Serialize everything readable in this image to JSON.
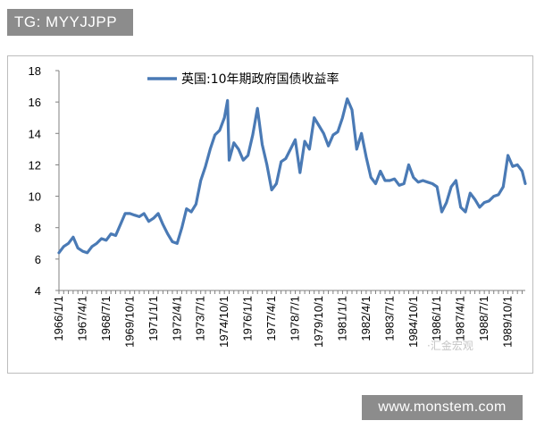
{
  "tag_label": "TG: MYYJJPP",
  "footer_url": "www.monstem.com",
  "watermark": "·汇金宏观",
  "colors": {
    "line": "#4a7ab5",
    "axis": "#808080",
    "tag_bg": "#8c8c8c"
  },
  "chart_data": {
    "type": "line",
    "title": "",
    "xlabel": "",
    "ylabel": "",
    "ylim": [
      4,
      18
    ],
    "yticks": [
      4,
      6,
      8,
      10,
      12,
      14,
      16,
      18
    ],
    "xlim": [
      "1966-01",
      "1990-09"
    ],
    "xtick_labels": [
      "1966/1/1",
      "1967/4/1",
      "1968/7/1",
      "1969/10/1",
      "1971/1/1",
      "1972/4/1",
      "1973/7/1",
      "1974/10/1",
      "1976/1/1",
      "1977/4/1",
      "1978/7/1",
      "1979/10/1",
      "1981/1/1",
      "1982/4/1",
      "1983/7/1",
      "1984/10/1",
      "1986/1/1",
      "1987/4/1",
      "1988/7/1",
      "1989/10/1"
    ],
    "grid": false,
    "legend_position": "top-left",
    "series": [
      {
        "name": "英国:10年期政府国债收益率",
        "x": [
          "1966-01",
          "1966-04",
          "1966-07",
          "1966-10",
          "1967-01",
          "1967-04",
          "1967-07",
          "1967-10",
          "1968-01",
          "1968-04",
          "1968-07",
          "1968-10",
          "1969-01",
          "1969-04",
          "1969-07",
          "1969-10",
          "1970-01",
          "1970-04",
          "1970-07",
          "1970-10",
          "1971-01",
          "1971-04",
          "1971-07",
          "1971-10",
          "1972-01",
          "1972-04",
          "1972-07",
          "1972-10",
          "1973-01",
          "1973-04",
          "1973-07",
          "1973-10",
          "1974-01",
          "1974-04",
          "1974-07",
          "1974-10",
          "1974-12",
          "1975-01",
          "1975-04",
          "1975-07",
          "1975-10",
          "1976-01",
          "1976-04",
          "1976-07",
          "1976-10",
          "1977-01",
          "1977-04",
          "1977-07",
          "1977-10",
          "1978-01",
          "1978-04",
          "1978-07",
          "1978-10",
          "1979-01",
          "1979-04",
          "1979-07",
          "1979-10",
          "1980-01",
          "1980-04",
          "1980-07",
          "1980-10",
          "1981-01",
          "1981-04",
          "1981-07",
          "1981-10",
          "1982-01",
          "1982-04",
          "1982-07",
          "1982-10",
          "1983-01",
          "1983-04",
          "1983-07",
          "1983-10",
          "1984-01",
          "1984-04",
          "1984-07",
          "1984-10",
          "1985-01",
          "1985-04",
          "1985-07",
          "1985-10",
          "1986-01",
          "1986-04",
          "1986-07",
          "1986-10",
          "1987-01",
          "1987-04",
          "1987-07",
          "1987-10",
          "1988-01",
          "1988-04",
          "1988-07",
          "1988-10",
          "1989-01",
          "1989-04",
          "1989-07",
          "1989-10",
          "1990-01",
          "1990-04",
          "1990-07",
          "1990-09"
        ],
        "y": [
          6.4,
          6.8,
          7.0,
          7.4,
          6.7,
          6.5,
          6.4,
          6.8,
          7.0,
          7.3,
          7.2,
          7.6,
          7.5,
          8.2,
          8.9,
          8.9,
          8.8,
          8.7,
          8.9,
          8.4,
          8.6,
          8.9,
          8.2,
          7.6,
          7.1,
          7.0,
          8.0,
          9.2,
          9.0,
          9.5,
          11.0,
          11.9,
          13.0,
          13.9,
          14.2,
          15.0,
          16.1,
          12.3,
          13.4,
          13.0,
          12.3,
          12.6,
          13.9,
          15.6,
          13.3,
          12.0,
          10.4,
          10.8,
          12.2,
          12.4,
          13.0,
          13.6,
          11.5,
          13.5,
          13.0,
          15.0,
          14.5,
          14.0,
          13.2,
          13.9,
          14.1,
          15.0,
          16.2,
          15.5,
          13.0,
          14.0,
          12.5,
          11.2,
          10.8,
          11.6,
          11.0,
          11.0,
          11.1,
          10.7,
          10.8,
          12.0,
          11.2,
          10.9,
          11.0,
          10.9,
          10.8,
          10.6,
          9.0,
          9.6,
          10.6,
          11.0,
          9.3,
          9.0,
          10.2,
          9.8,
          9.3,
          9.6,
          9.7,
          10.0,
          10.1,
          10.6,
          12.6,
          11.9,
          12.0,
          11.6,
          10.8
        ]
      }
    ]
  }
}
